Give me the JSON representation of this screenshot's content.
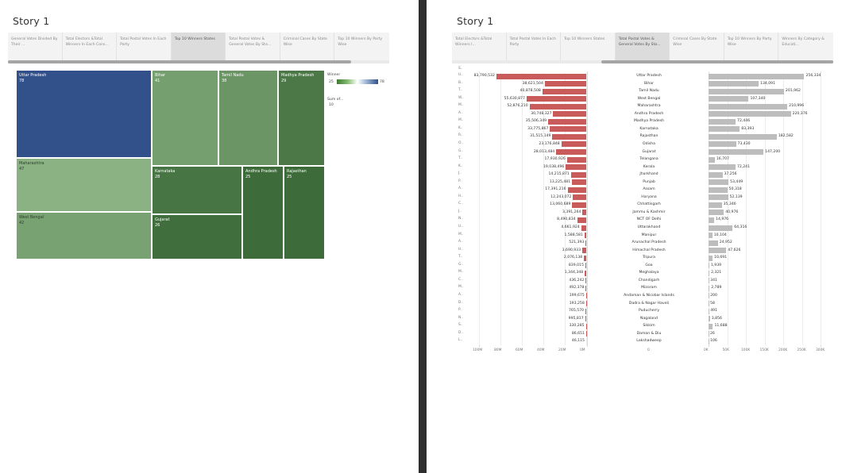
{
  "left": {
    "title": "Story 1",
    "tabs": [
      {
        "label": "General Votes Divided By Their ..."
      },
      {
        "label": "Total Electors &Total Winners In Each Cons..."
      },
      {
        "label": "Total Postal Votes In Each Party"
      },
      {
        "label": "Top 10 Winners States"
      },
      {
        "label": "Total Postal Votes & General Votes By Sta..."
      },
      {
        "label": "Criminal Cases By State Wise"
      },
      {
        "label": "Top 10 Winners By Party Wise"
      }
    ],
    "active_tab": 3,
    "legend": {
      "title": "Winner",
      "min": "25",
      "max": "78",
      "size_title": "Sum of...",
      "size_value": "10"
    }
  },
  "right": {
    "title": "Story 1",
    "tabs": [
      {
        "label": "Total Electors &Total Winners I..."
      },
      {
        "label": "Total Postal Votes In Each Party"
      },
      {
        "label": "Top 10 Winners States"
      },
      {
        "label": "Total Postal Votes & General Votes By Sta..."
      },
      {
        "label": "Criminal Cases By State Wise"
      },
      {
        "label": "Top 10 Winners By Party Wise"
      },
      {
        "label": "Winners By Category & Educati..."
      }
    ],
    "active_tab": 3,
    "column_header_abbr": "S..",
    "left_axis_ticks": [
      "100M",
      "80M",
      "60M",
      "40M",
      "20M",
      "0M"
    ],
    "center_axis_tick": "0",
    "right_axis_ticks": [
      "0K",
      "50K",
      "100K",
      "150K",
      "200K",
      "250K",
      "300K"
    ]
  },
  "chart_data": [
    {
      "type": "treemap",
      "title": "Top 10 Winners States",
      "items": [
        {
          "state": "Uttar Pradesh",
          "winners": 78
        },
        {
          "state": "Maharashtra",
          "winners": 47
        },
        {
          "state": "West Bengal",
          "winners": 42
        },
        {
          "state": "Bihar",
          "winners": 41
        },
        {
          "state": "Tamil Nadu",
          "winners": 38
        },
        {
          "state": "Madhya Pradesh",
          "winners": 29
        },
        {
          "state": "Karnataka",
          "winners": 28
        },
        {
          "state": "Gujarat",
          "winners": 26
        },
        {
          "state": "Andhra Pradesh",
          "winners": 25
        },
        {
          "state": "Rajasthan",
          "winners": 25
        }
      ],
      "color_range": [
        25,
        78
      ]
    },
    {
      "type": "bar",
      "title": "Total Postal Votes & General Votes By State",
      "rows": [
        {
          "abbr": "U..",
          "state": "Uttar Pradesh",
          "general": 83790532,
          "general_label": "83,790,532",
          "postal": 256334,
          "postal_label": "256,334"
        },
        {
          "abbr": "B..",
          "state": "Bihar",
          "general": 38621504,
          "general_label": "38,621,504",
          "postal": 134091,
          "postal_label": "134,091"
        },
        {
          "abbr": "T..",
          "state": "Tamil Nadu",
          "general": 40878508,
          "general_label": "40,878,508",
          "postal": 201962,
          "postal_label": "201,962"
        },
        {
          "abbr": "W..",
          "state": "West Bengal",
          "general": 55630877,
          "general_label": "55,630,877",
          "postal": 107340,
          "postal_label": "107,340"
        },
        {
          "abbr": "M..",
          "state": "Maharashtra",
          "general": 52876210,
          "general_label": "52,876,210",
          "postal": 210996,
          "postal_label": "210,996"
        },
        {
          "abbr": "A..",
          "state": "Andhra Pradesh",
          "general": 30748327,
          "general_label": "30,748,327",
          "postal": 220376,
          "postal_label": "220,376"
        },
        {
          "abbr": "M..",
          "state": "Madhya Pradesh",
          "general": 35506349,
          "general_label": "35,506,349",
          "postal": 72446,
          "postal_label": "72,446"
        },
        {
          "abbr": "K..",
          "state": "Karnataka",
          "general": 33775867,
          "general_label": "33,775,867",
          "postal": 83393,
          "postal_label": "83,393"
        },
        {
          "abbr": "R..",
          "state": "Rajasthan",
          "general": 31515149,
          "general_label": "31,515,149",
          "postal": 182582,
          "postal_label": "182,582"
        },
        {
          "abbr": "O..",
          "state": "Odisha",
          "general": 23176848,
          "general_label": "23,176,848",
          "postal": 73430,
          "postal_label": "73,430"
        },
        {
          "abbr": "G..",
          "state": "Gujarat",
          "general": 28013484,
          "general_label": "28,013,484",
          "postal": 147200,
          "postal_label": "147,200"
        },
        {
          "abbr": "T..",
          "state": "Telangana",
          "general": 17930926,
          "general_label": "17,930,926",
          "postal": 16707,
          "postal_label": "16,707"
        },
        {
          "abbr": "K..",
          "state": "Kerala",
          "general": 19038496,
          "general_label": "19,038,496",
          "postal": 72241,
          "postal_label": "72,241"
        },
        {
          "abbr": "J..",
          "state": "Jharkhand",
          "general": 14215871,
          "general_label": "14,215,871",
          "postal": 37256,
          "postal_label": "37,256"
        },
        {
          "abbr": "P..",
          "state": "Punjab",
          "general": 13225481,
          "general_label": "13,225,481",
          "postal": 53449,
          "postal_label": "53,449"
        },
        {
          "abbr": "A..",
          "state": "Assam",
          "general": 17391216,
          "general_label": "17,391,216",
          "postal": 50318,
          "postal_label": "50,318"
        },
        {
          "abbr": "H..",
          "state": "Haryana",
          "general": 12243072,
          "general_label": "12,243,072",
          "postal": 52139,
          "postal_label": "52,139"
        },
        {
          "abbr": "C..",
          "state": "Chhattisgarh",
          "general": 13060689,
          "general_label": "13,060,689",
          "postal": 35346,
          "postal_label": "35,346"
        },
        {
          "abbr": "J..",
          "state": "Jammu & Kashmir",
          "general": 3391264,
          "general_label": "3,391,264",
          "postal": 40976,
          "postal_label": "40,976"
        },
        {
          "abbr": "N..",
          "state": "NCT OF Delhi",
          "general": 8490834,
          "general_label": "8,490,834",
          "postal": 14976,
          "postal_label": "14,976"
        },
        {
          "abbr": "U..",
          "state": "Uttarakhand",
          "general": 4661924,
          "general_label": "4,661,924",
          "postal": 64316,
          "postal_label": "64,316"
        },
        {
          "abbr": "M..",
          "state": "Manipur",
          "general": 1588581,
          "general_label": "1,588,581",
          "postal": 10104,
          "postal_label": "10,104"
        },
        {
          "abbr": "A..",
          "state": "Arunachal Pradesh",
          "general": 521393,
          "general_label": "521,393",
          "postal": 24952,
          "postal_label": "24,952"
        },
        {
          "abbr": "H..",
          "state": "Himachal Pradesh",
          "general": 3690933,
          "general_label": "3,690,933",
          "postal": 47626,
          "postal_label": "47,626"
        },
        {
          "abbr": "T..",
          "state": "Tripura",
          "general": 2076138,
          "general_label": "2,076,138",
          "postal": 10691,
          "postal_label": "10,691"
        },
        {
          "abbr": "G..",
          "state": "Goa",
          "general": 839015,
          "general_label": "839,015",
          "postal": 1939,
          "postal_label": "1,939"
        },
        {
          "abbr": "M..",
          "state": "Meghalaya",
          "general": 1344348,
          "general_label": "1,344,348",
          "postal": 2321,
          "postal_label": "2,321"
        },
        {
          "abbr": "C..",
          "state": "Chandigarh",
          "general": 436242,
          "general_label": "436,242",
          "postal": 341,
          "postal_label": "341"
        },
        {
          "abbr": "M..",
          "state": "Mizoram",
          "general": 492378,
          "general_label": "492,378",
          "postal": 2789,
          "postal_label": "2,789"
        },
        {
          "abbr": "A..",
          "state": "Andaman & Nicobar Islands",
          "general": 199675,
          "general_label": "199,675",
          "postal": 200,
          "postal_label": "200"
        },
        {
          "abbr": "D..",
          "state": "Dadra & Nagar Haveli",
          "general": 193258,
          "general_label": "193,258",
          "postal": 58,
          "postal_label": "58"
        },
        {
          "abbr": "P..",
          "state": "Puducherry",
          "general": 765570,
          "general_label": "765,570",
          "postal": 491,
          "postal_label": "491"
        },
        {
          "abbr": "N..",
          "state": "Nagaland",
          "general": 995817,
          "general_label": "995,817",
          "postal": 3856,
          "postal_label": "3,856"
        },
        {
          "abbr": "S..",
          "state": "Sikkim",
          "general": 330285,
          "general_label": "330,285",
          "postal": 11688,
          "postal_label": "11,688"
        },
        {
          "abbr": "D..",
          "state": "Daman & Diu",
          "general": 86651,
          "general_label": "86,651",
          "postal": 26,
          "postal_label": "26"
        },
        {
          "abbr": "L..",
          "state": "Lakshadweep",
          "general": 46115,
          "general_label": "46,115",
          "postal": 106,
          "postal_label": "106"
        }
      ],
      "general_axis_range": [
        0,
        100000000
      ],
      "postal_axis_range": [
        0,
        300000
      ],
      "colors": {
        "general": "#c95b5b",
        "postal": "#bdbdbd"
      }
    }
  ]
}
